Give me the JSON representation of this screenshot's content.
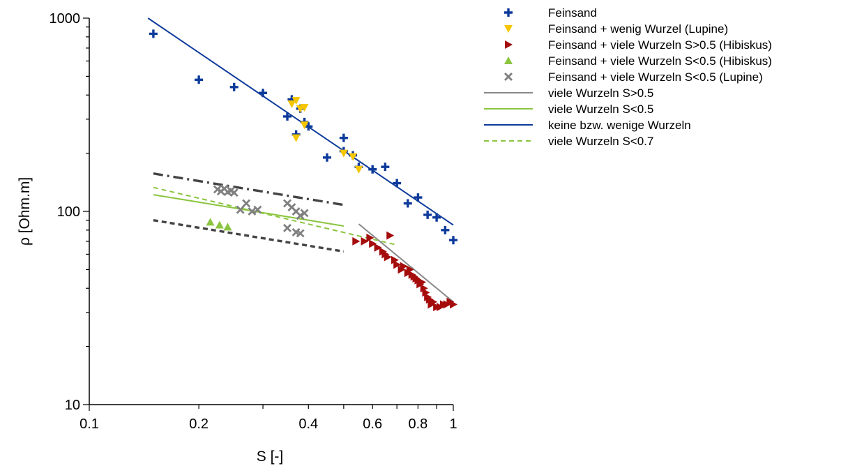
{
  "chart_data": {
    "type": "scatter",
    "xlabel": "S [-]",
    "ylabel": "ρ [Ohm.m]",
    "x_scale": "log",
    "y_scale": "log",
    "xlim": [
      0.1,
      1
    ],
    "ylim": [
      10,
      1000
    ],
    "x_ticks": [
      0.1,
      0.2,
      0.4,
      0.6,
      0.8,
      1
    ],
    "x_tick_labels": [
      "0.1",
      "0.2",
      "0.4",
      "0.6",
      "0.8",
      "1"
    ],
    "y_ticks": [
      10,
      100,
      1000
    ],
    "y_tick_labels": [
      "10",
      "100",
      "1000"
    ],
    "grid": false,
    "legend_position": "top-right, outside plot area",
    "series": [
      {
        "name": "Feinsand",
        "kind": "scatter",
        "marker": "plus",
        "color": "#0d3a9b",
        "x": [
          0.15,
          0.2,
          0.25,
          0.3,
          0.35,
          0.36,
          0.37,
          0.38,
          0.39,
          0.4,
          0.45,
          0.5,
          0.5,
          0.53,
          0.55,
          0.6,
          0.65,
          0.7,
          0.75,
          0.8,
          0.85,
          0.9,
          0.95,
          1.0
        ],
        "y": [
          830,
          480,
          440,
          410,
          310,
          380,
          250,
          340,
          290,
          275,
          190,
          240,
          205,
          195,
          170,
          165,
          170,
          140,
          110,
          118,
          96,
          93,
          80,
          71
        ]
      },
      {
        "name": "Feinsand + wenig Wurzel (Lupine)",
        "kind": "scatter",
        "marker": "triangle-down",
        "color": "#f5c600",
        "x": [
          0.36,
          0.37,
          0.38,
          0.39,
          0.37,
          0.39,
          0.5,
          0.53,
          0.55
        ],
        "y": [
          360,
          375,
          340,
          345,
          240,
          280,
          200,
          192,
          165
        ]
      },
      {
        "name": "Feinsand + viele Wurzeln S>0.5 (Hibiskus)",
        "kind": "scatter",
        "marker": "triangle-right",
        "color": "#a50d0d",
        "x": [
          0.54,
          0.57,
          0.59,
          0.6,
          0.62,
          0.64,
          0.65,
          0.66,
          0.67,
          0.69,
          0.7,
          0.72,
          0.73,
          0.75,
          0.76,
          0.77,
          0.78,
          0.79,
          0.8,
          0.81,
          0.82,
          0.83,
          0.84,
          0.85,
          0.86,
          0.87,
          0.88,
          0.9,
          0.92,
          0.94,
          0.96,
          0.98,
          1.0
        ],
        "y": [
          70,
          70,
          73,
          68,
          65,
          62,
          60,
          58,
          75,
          56,
          53,
          50,
          52,
          48,
          50,
          47,
          46,
          45,
          44,
          42,
          43,
          40,
          38,
          36,
          35,
          33,
          34,
          32,
          32,
          33,
          33,
          34,
          33
        ]
      },
      {
        "name": "Feinsand + viele Wurzeln S<0.5 (Hibiskus)",
        "kind": "scatter",
        "marker": "triangle-up",
        "color": "#8bc53f",
        "x": [
          0.215,
          0.228,
          0.24
        ],
        "y": [
          88,
          85,
          83
        ]
      },
      {
        "name": "Feinsand + viele Wurzeln S<0.5 (Lupine)",
        "kind": "scatter",
        "marker": "x",
        "color": "#808080",
        "x": [
          0.225,
          0.23,
          0.235,
          0.24,
          0.245,
          0.25,
          0.26,
          0.27,
          0.28,
          0.29,
          0.35,
          0.36,
          0.37,
          0.38,
          0.39,
          0.35,
          0.37,
          0.38
        ],
        "y": [
          130,
          127,
          131,
          126,
          128,
          125,
          102,
          110,
          100,
          102,
          110,
          105,
          100,
          95,
          98,
          82,
          78,
          77
        ]
      },
      {
        "name": "viele Wurzeln S>0.5",
        "kind": "line",
        "style": "solid",
        "color": "#888888",
        "x": [
          0.55,
          1.0
        ],
        "y": [
          86,
          34
        ]
      },
      {
        "name": "viele Wurzeln S<0.5",
        "kind": "line",
        "style": "solid",
        "color": "#8bc53f",
        "x": [
          0.15,
          0.5
        ],
        "y": [
          122,
          84
        ]
      },
      {
        "name": "keine bzw. wenige Wurzeln",
        "kind": "line",
        "style": "solid",
        "color": "#0d3a9b",
        "x": [
          0.145,
          1.0
        ],
        "y": [
          1000,
          85
        ]
      },
      {
        "name": "viele Wurzeln S<0.7",
        "kind": "line",
        "style": "dashed",
        "color": "#8bc53f",
        "x": [
          0.15,
          0.7
        ],
        "y": [
          133,
          67
        ]
      },
      {
        "kind": "line",
        "style": "dash-dot",
        "color": "#444444",
        "x": [
          0.15,
          0.5
        ],
        "y": [
          157,
          108
        ]
      },
      {
        "kind": "line",
        "style": "dashed",
        "color": "#444444",
        "x": [
          0.15,
          0.5
        ],
        "y": [
          90,
          62
        ]
      }
    ],
    "legend": [
      {
        "label": "Feinsand",
        "marker": "plus",
        "color": "#0d3a9b"
      },
      {
        "label": "Feinsand + wenig Wurzel (Lupine)",
        "marker": "triangle-down",
        "color": "#f5c600"
      },
      {
        "label": "Feinsand + viele Wurzeln S>0.5 (Hibiskus)",
        "marker": "triangle-right",
        "color": "#a50d0d"
      },
      {
        "label": "Feinsand + viele Wurzeln S<0.5 (Hibiskus)",
        "marker": "triangle-up",
        "color": "#8bc53f"
      },
      {
        "label": "Feinsand + viele Wurzeln S<0.5 (Lupine)",
        "marker": "x",
        "color": "#808080"
      },
      {
        "label": "viele Wurzeln S>0.5",
        "line": "solid",
        "color": "#888888"
      },
      {
        "label": "viele Wurzeln S<0.5",
        "line": "solid",
        "color": "#8bc53f"
      },
      {
        "label": "keine bzw. wenige Wurzeln",
        "line": "solid",
        "color": "#0d3a9b"
      },
      {
        "label": "viele Wurzeln S<0.7",
        "line": "dashed",
        "color": "#8bc53f"
      }
    ]
  }
}
